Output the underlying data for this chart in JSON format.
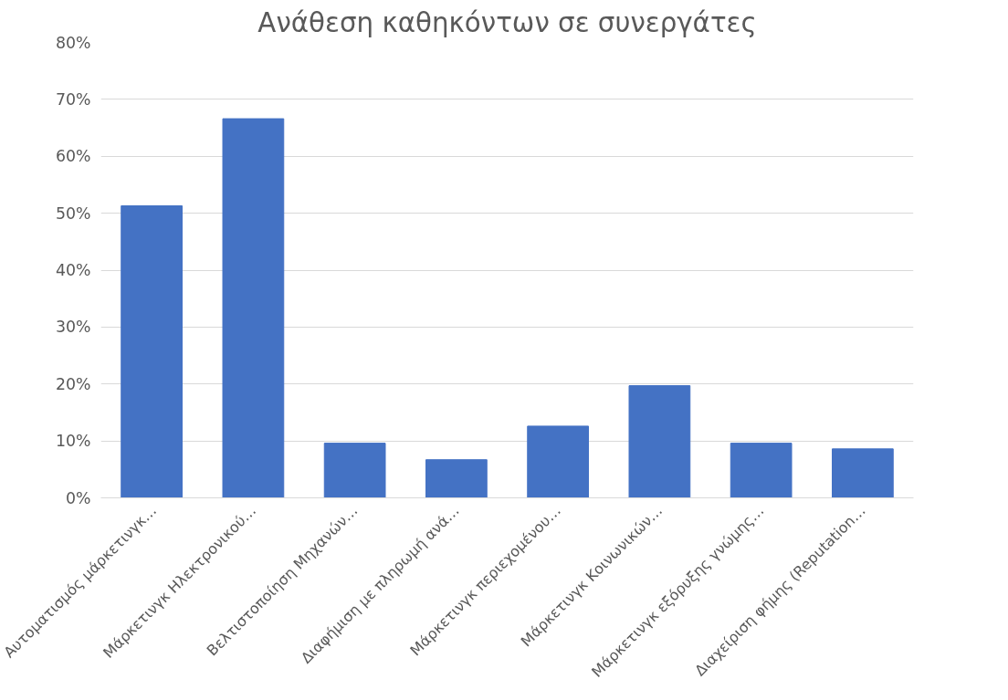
{
  "chart_data": {
    "type": "bar",
    "title": "Ανάθεση καθηκόντων σε συνεργάτες",
    "categories": [
      "Αυτοματισμός μάρκετινγκ…",
      "Μάρκετινγκ Ηλεκτρονικού…",
      "Βελτιστοποίηση Μηχανών…",
      "Διαφήμιση με πληρωμή ανά…",
      "Μάρκετινγκ περιεχομένου…",
      "Μάρκετινγκ Κοινωνικών…",
      "Μάρκετινγκ εξόρυξης γνώμης…",
      "Διαχείριση φήμης (Reputation…"
    ],
    "values": [
      51.3,
      66.6,
      9.6,
      6.7,
      12.6,
      19.7,
      9.6,
      8.6
    ],
    "color": "#4472c4",
    "ylim": [
      0,
      80
    ],
    "yticks": [
      {
        "value": 0,
        "label": "0%"
      },
      {
        "value": 10,
        "label": "10%"
      },
      {
        "value": 20,
        "label": "20%"
      },
      {
        "value": 30,
        "label": "30%"
      },
      {
        "value": 40,
        "label": "40%"
      },
      {
        "value": 50,
        "label": "50%"
      },
      {
        "value": 60,
        "label": "60%"
      },
      {
        "value": 70,
        "label": "70%"
      },
      {
        "value": 80,
        "label": "80%"
      }
    ],
    "grid": "y"
  }
}
